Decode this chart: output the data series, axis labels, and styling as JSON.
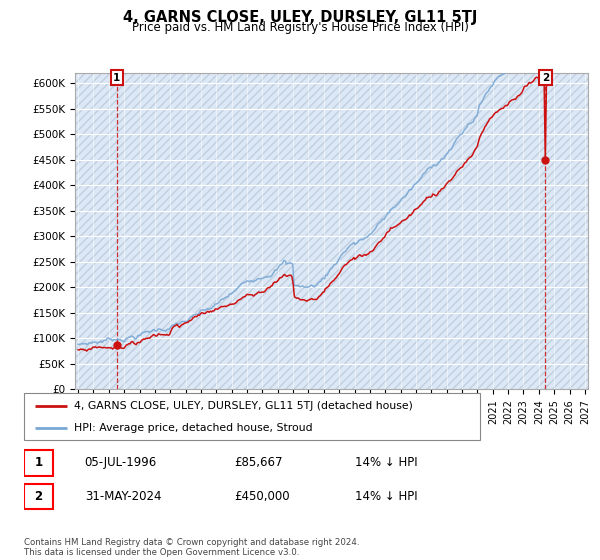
{
  "title": "4, GARNS CLOSE, ULEY, DURSLEY, GL11 5TJ",
  "subtitle": "Price paid vs. HM Land Registry's House Price Index (HPI)",
  "ylim": [
    0,
    620000
  ],
  "yticks": [
    0,
    50000,
    100000,
    150000,
    200000,
    250000,
    300000,
    350000,
    400000,
    450000,
    500000,
    550000,
    600000
  ],
  "ytick_labels": [
    "£0",
    "£50K",
    "£100K",
    "£150K",
    "£200K",
    "£250K",
    "£300K",
    "£350K",
    "£400K",
    "£450K",
    "£500K",
    "£550K",
    "£600K"
  ],
  "hpi_color": "#7aa8d4",
  "price_color": "#cc1111",
  "bg_color": "#dce8f5",
  "hatch_color": "#c0cfe0",
  "grid_color": "#ffffff",
  "point1_year": 1996.52,
  "point1_price": 85667,
  "point2_year": 2024.42,
  "point2_price": 450000,
  "legend_line1": "4, GARNS CLOSE, ULEY, DURSLEY, GL11 5TJ (detached house)",
  "legend_line2": "HPI: Average price, detached house, Stroud",
  "table_row1": [
    "1",
    "05-JUL-1996",
    "£85,667",
    "14% ↓ HPI"
  ],
  "table_row2": [
    "2",
    "31-MAY-2024",
    "£450,000",
    "14% ↓ HPI"
  ],
  "footer": "Contains HM Land Registry data © Crown copyright and database right 2024.\nThis data is licensed under the Open Government Licence v3.0.",
  "xmin": 1993.8,
  "xmax": 2027.2,
  "xtick_start": 1994,
  "xtick_end": 2027
}
